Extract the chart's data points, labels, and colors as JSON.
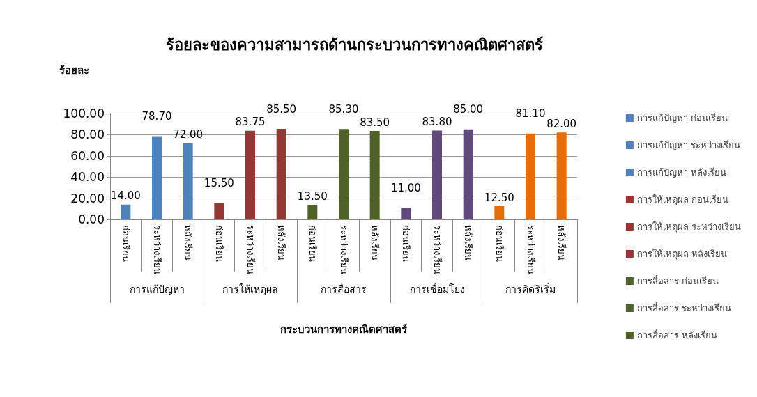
{
  "chart_data": {
    "type": "bar",
    "title": "ร้อยละของความสามารถด้านกระบวนการทางคณิตศาสตร์",
    "xlabel": "กระบวนการทางคณิตศาสตร์",
    "ylabel": "ร้อยละ",
    "categories": [
      "ก่อนเรียน",
      "ระหว่างเรียน",
      "หลังเรียน",
      "ก่อนเรียน",
      "ระหว่างเรียน",
      "หลังเรียน",
      "ก่อนเรียน",
      "ระหว่างเรียน",
      "หลังเรียน",
      "ก่อนเรียน",
      "ระหว่างเรียน",
      "หลังเรียน",
      "ก่อนเรียน",
      "ระหว่างเรียน",
      "หลังเรียน"
    ],
    "annotations": [
      "การแก้ปัญหา",
      "การให้เหตุผล",
      "การสื่อสาร",
      "การเชื่อมโยง",
      "การคิดริเริ่ม"
    ],
    "stacked": true,
    "series": [
      {
        "name": "การแก้ปัญหา ก่อนเรียน",
        "color": "#4f81bd",
        "values": [
          14,
          null,
          null,
          null,
          null,
          null,
          null,
          null,
          null,
          null,
          null,
          null,
          null,
          null,
          null
        ],
        "value_labels": [
          "14.00",
          null,
          null,
          null,
          null,
          null,
          null,
          null,
          null,
          null,
          null,
          null,
          null,
          null,
          null
        ]
      },
      {
        "name": "การแก้ปัญหา ระหว่างเรียน",
        "color": "#4f81bd",
        "values": [
          null,
          78.7,
          null,
          null,
          null,
          null,
          null,
          null,
          null,
          null,
          null,
          null,
          null,
          null,
          null
        ],
        "value_labels": [
          null,
          "78.70",
          null,
          null,
          null,
          null,
          null,
          null,
          null,
          null,
          null,
          null,
          null,
          null,
          null
        ]
      },
      {
        "name": "การแก้ปัญหา หลังเรียน",
        "color": "#4f81bd",
        "values": [
          null,
          null,
          72,
          null,
          null,
          null,
          null,
          null,
          null,
          null,
          null,
          null,
          null,
          null,
          null
        ],
        "value_labels": [
          null,
          null,
          "72.00",
          null,
          null,
          null,
          null,
          null,
          null,
          null,
          null,
          null,
          null,
          null,
          null
        ]
      },
      {
        "name": "การให้เหตุผล ก่อนเรียน",
        "color": "#953735",
        "values": [
          null,
          null,
          null,
          15.5,
          null,
          null,
          null,
          null,
          null,
          null,
          null,
          null,
          null,
          null,
          null
        ],
        "value_labels": [
          null,
          null,
          null,
          "15.50",
          null,
          null,
          null,
          null,
          null,
          null,
          null,
          null,
          null,
          null,
          null
        ]
      },
      {
        "name": "การให้เหตุผล ระหว่างเรียน",
        "color": "#953735",
        "values": [
          null,
          null,
          null,
          null,
          83.75,
          null,
          null,
          null,
          null,
          null,
          null,
          null,
          null,
          null,
          null
        ],
        "value_labels": [
          null,
          null,
          null,
          null,
          "83.75",
          null,
          null,
          null,
          null,
          null,
          null,
          null,
          null,
          null,
          null
        ]
      },
      {
        "name": "การให้เหตุผล หลังเรียน",
        "color": "#953735",
        "values": [
          null,
          null,
          null,
          null,
          null,
          85.5,
          null,
          null,
          null,
          null,
          null,
          null,
          null,
          null,
          null
        ],
        "value_labels": [
          null,
          null,
          null,
          null,
          null,
          "85.50",
          null,
          null,
          null,
          null,
          null,
          null,
          null,
          null,
          null
        ]
      },
      {
        "name": "การสื่อสาร ก่อนเรียน",
        "color": "#4f6228",
        "values": [
          null,
          null,
          null,
          null,
          null,
          null,
          13.5,
          null,
          null,
          null,
          null,
          null,
          null,
          null,
          null
        ],
        "value_labels": [
          null,
          null,
          null,
          null,
          null,
          null,
          "13.50",
          null,
          null,
          null,
          null,
          null,
          null,
          null,
          null
        ]
      },
      {
        "name": "การสื่อสาร ระหว่างเรียน",
        "color": "#4f6228",
        "values": [
          null,
          null,
          null,
          null,
          null,
          null,
          null,
          85.3,
          null,
          null,
          null,
          null,
          null,
          null,
          null
        ],
        "value_labels": [
          null,
          null,
          null,
          null,
          null,
          null,
          null,
          "85.30",
          null,
          null,
          null,
          null,
          null,
          null,
          null
        ]
      },
      {
        "name": "การสื่อสาร หลังเรียน",
        "color": "#4f6228",
        "values": [
          null,
          null,
          null,
          null,
          null,
          null,
          null,
          null,
          83.5,
          null,
          null,
          null,
          null,
          null,
          null
        ],
        "value_labels": [
          null,
          null,
          null,
          null,
          null,
          null,
          null,
          null,
          "83.50",
          null,
          null,
          null,
          null,
          null,
          null
        ]
      },
      {
        "color": "#604a7b",
        "values": [
          null,
          null,
          null,
          null,
          null,
          null,
          null,
          null,
          null,
          11,
          null,
          null,
          null,
          null,
          null
        ],
        "value_labels": [
          null,
          null,
          null,
          null,
          null,
          null,
          null,
          null,
          null,
          "11.00",
          null,
          null,
          null,
          null,
          null
        ]
      },
      {
        "color": "#604a7b",
        "values": [
          null,
          null,
          null,
          null,
          null,
          null,
          null,
          null,
          null,
          null,
          83.8,
          null,
          null,
          null,
          null
        ],
        "value_labels": [
          null,
          null,
          null,
          null,
          null,
          null,
          null,
          null,
          null,
          null,
          "83.80",
          null,
          null,
          null,
          null
        ]
      },
      {
        "color": "#604a7b",
        "values": [
          null,
          null,
          null,
          null,
          null,
          null,
          null,
          null,
          null,
          null,
          null,
          85,
          null,
          null,
          null
        ],
        "value_labels": [
          null,
          null,
          null,
          null,
          null,
          null,
          null,
          null,
          null,
          null,
          null,
          "85.00",
          null,
          null,
          null
        ]
      },
      {
        "color": "#e46c0a",
        "values": [
          null,
          null,
          null,
          null,
          null,
          null,
          null,
          null,
          null,
          null,
          null,
          null,
          12.5,
          null,
          null
        ],
        "value_labels": [
          null,
          null,
          null,
          null,
          null,
          null,
          null,
          null,
          null,
          null,
          null,
          null,
          "12.50",
          null,
          null
        ]
      },
      {
        "color": "#e46c0a",
        "values": [
          null,
          null,
          null,
          null,
          null,
          null,
          null,
          null,
          null,
          null,
          null,
          null,
          null,
          81.1,
          null
        ],
        "value_labels": [
          null,
          null,
          null,
          null,
          null,
          null,
          null,
          null,
          null,
          null,
          null,
          null,
          null,
          "81.10",
          null
        ]
      },
      {
        "color": "#e46c0a",
        "values": [
          null,
          null,
          null,
          null,
          null,
          null,
          null,
          null,
          null,
          null,
          null,
          null,
          null,
          null,
          82
        ],
        "value_labels": [
          null,
          null,
          null,
          null,
          null,
          null,
          null,
          null,
          null,
          null,
          null,
          null,
          null,
          null,
          "82.00"
        ]
      }
    ],
    "ylim": [
      0,
      100
    ],
    "yticks": [
      {
        "value": 0,
        "label": "0.00"
      },
      {
        "value": 20,
        "label": "20.00"
      },
      {
        "value": 40,
        "label": "40.00"
      },
      {
        "value": 60,
        "label": "60.00"
      },
      {
        "value": 80,
        "label": "80.00"
      },
      {
        "value": 100,
        "label": "100.00"
      }
    ],
    "grid": "y",
    "legend": "right"
  }
}
